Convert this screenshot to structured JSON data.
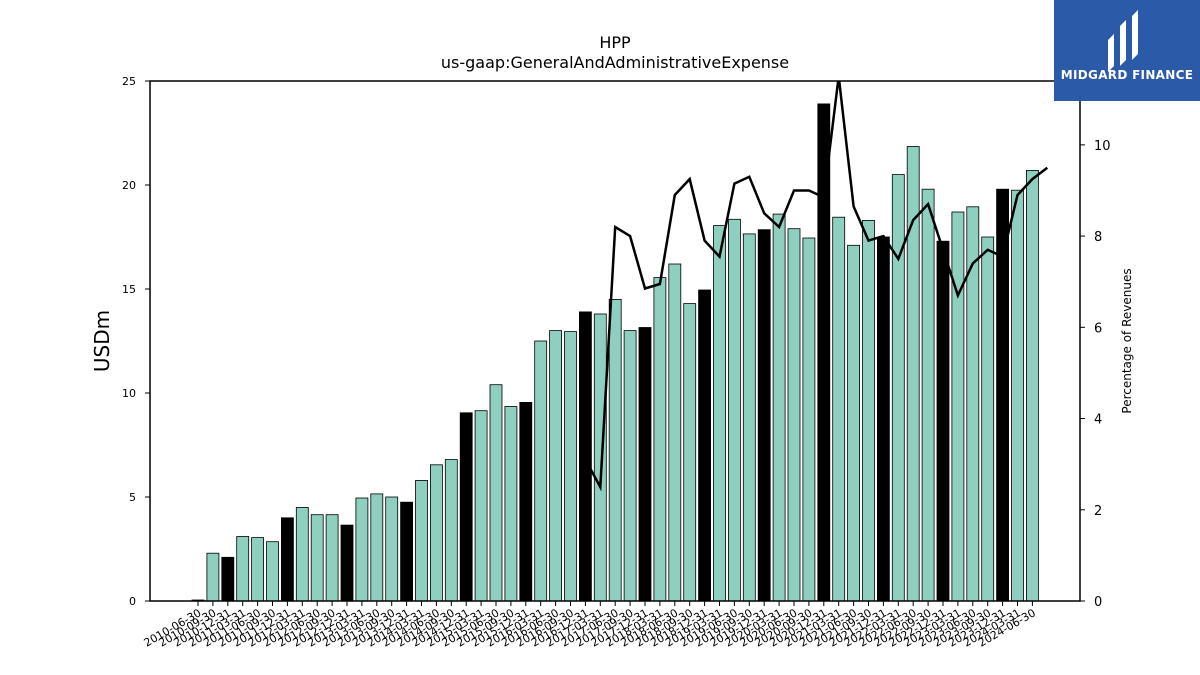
{
  "chart_data": {
    "type": "bar",
    "title": "HPP",
    "subtitle": "us-gaap:GeneralAndAdministrativeExpense",
    "ylabel": "USDm",
    "ylabel_right": "Percentage of Revenues",
    "ylim": [
      0,
      25
    ],
    "ylim_right": [
      0,
      11.4
    ],
    "yticks": [
      0,
      5,
      10,
      15,
      20,
      25
    ],
    "yticks_right": [
      0,
      2,
      4,
      6,
      8,
      10
    ],
    "colors": {
      "bar": "#8ecfc0",
      "bar_highlight": "#000000",
      "line": "#000000"
    },
    "categories": [
      "2010-06-30",
      "2010-09-30",
      "2010-12-31",
      "2011-03-31",
      "2011-06-30",
      "2011-09-30",
      "2011-12-31",
      "2012-03-31",
      "2012-06-30",
      "2012-09-30",
      "2012-12-31",
      "2013-03-31",
      "2013-06-30",
      "2013-09-30",
      "2013-12-31",
      "2014-03-31",
      "2014-06-30",
      "2014-09-30",
      "2014-12-31",
      "2015-03-31",
      "2015-06-30",
      "2015-09-30",
      "2015-12-31",
      "2016-03-31",
      "2016-06-30",
      "2016-09-30",
      "2016-12-31",
      "2017-03-31",
      "2017-06-30",
      "2017-09-30",
      "2017-12-31",
      "2018-03-31",
      "2018-06-30",
      "2018-09-30",
      "2018-12-31",
      "2019-03-31",
      "2019-06-30",
      "2019-09-30",
      "2019-12-31",
      "2020-03-31",
      "2020-06-30",
      "2020-09-30",
      "2020-12-31",
      "2021-03-31",
      "2021-06-30",
      "2021-09-30",
      "2021-12-31",
      "2022-03-31",
      "2022-06-30",
      "2022-09-30",
      "2022-12-31",
      "2023-03-31",
      "2023-06-30",
      "2023-09-30",
      "2023-12-31",
      "2024-03-31",
      "2024-06-30"
    ],
    "values": [
      0.05,
      2.3,
      2.1,
      3.1,
      3.05,
      2.85,
      4.0,
      4.5,
      4.15,
      4.15,
      3.65,
      4.95,
      5.15,
      5.0,
      4.75,
      5.8,
      6.55,
      6.8,
      9.05,
      9.15,
      10.4,
      9.35,
      9.55,
      12.5,
      13.0,
      12.95,
      13.9,
      13.8,
      14.5,
      13.0,
      13.15,
      15.55,
      16.2,
      14.3,
      14.95,
      18.05,
      18.35,
      17.65,
      17.85,
      18.6,
      17.9,
      17.45,
      23.9,
      18.45,
      17.1,
      18.3,
      17.5,
      20.5,
      21.85,
      19.8,
      17.3,
      18.7,
      18.95,
      17.5,
      19.8,
      19.75,
      20.7
    ],
    "highlight": [
      false,
      false,
      true,
      false,
      false,
      false,
      true,
      false,
      false,
      false,
      true,
      false,
      false,
      false,
      true,
      false,
      false,
      false,
      true,
      false,
      false,
      false,
      true,
      false,
      false,
      false,
      true,
      false,
      false,
      false,
      true,
      false,
      false,
      false,
      true,
      false,
      false,
      false,
      true,
      false,
      false,
      false,
      true,
      false,
      false,
      false,
      true,
      false,
      false,
      false,
      true,
      false,
      false,
      false,
      true,
      false,
      false
    ],
    "line_series": {
      "start_index": 26,
      "values": [
        3.1,
        2.5,
        8.2,
        8.0,
        6.85,
        6.95,
        8.9,
        9.25,
        7.9,
        7.55,
        9.15,
        9.3,
        8.5,
        8.2,
        9.0,
        9.0,
        8.85,
        11.5,
        8.65,
        7.9,
        8.0,
        7.5,
        8.35,
        8.7,
        7.7,
        6.7,
        7.4,
        7.7,
        7.55,
        8.9,
        9.25,
        9.5
      ]
    }
  },
  "logo": {
    "text": "MIDGARD FINANCE"
  }
}
